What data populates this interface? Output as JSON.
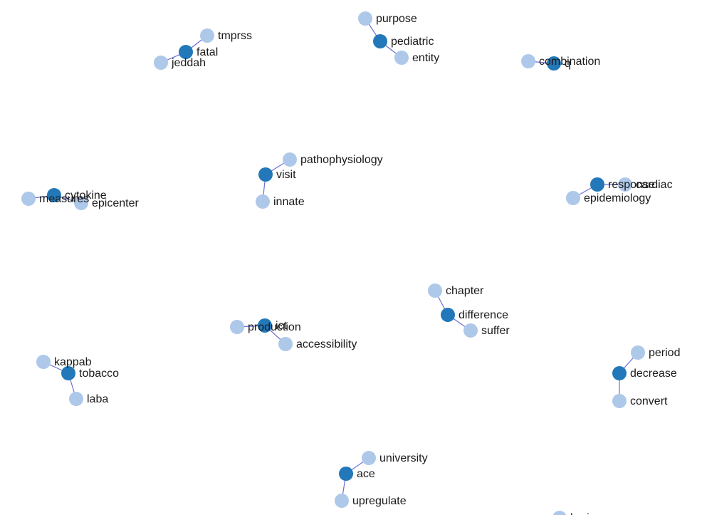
{
  "colors": {
    "hub_node": "#2278b8",
    "leaf_node": "#aec8e9",
    "edge": "#6b6fd4",
    "label": "#1a1a1a"
  },
  "clusters": [
    {
      "hub": {
        "label": "fatal"
      },
      "leaves": [
        {
          "label": "tmprss"
        },
        {
          "label": "jeddah"
        }
      ]
    },
    {
      "hub": {
        "label": "pediatric"
      },
      "leaves": [
        {
          "label": "purpose"
        },
        {
          "label": "entity"
        }
      ]
    },
    {
      "hub": {
        "label": "q"
      },
      "leaves": [
        {
          "label": "combination"
        }
      ]
    },
    {
      "hub": {
        "label": "cytokine"
      },
      "leaves": [
        {
          "label": "measures"
        },
        {
          "label": "epicenter"
        }
      ]
    },
    {
      "hub": {
        "label": "visit"
      },
      "leaves": [
        {
          "label": "pathophysiology"
        },
        {
          "label": "innate"
        }
      ]
    },
    {
      "hub": {
        "label": "response"
      },
      "leaves": [
        {
          "label": "cardiac"
        },
        {
          "label": "epidemiology"
        }
      ]
    },
    {
      "hub": {
        "label": "ict"
      },
      "leaves": [
        {
          "label": "production"
        },
        {
          "label": "accessibility"
        }
      ]
    },
    {
      "hub": {
        "label": "difference"
      },
      "leaves": [
        {
          "label": "chapter"
        },
        {
          "label": "suffer"
        }
      ]
    },
    {
      "hub": {
        "label": "tobacco"
      },
      "leaves": [
        {
          "label": "kappab"
        },
        {
          "label": "laba"
        }
      ]
    },
    {
      "hub": {
        "label": "decrease"
      },
      "leaves": [
        {
          "label": "period"
        },
        {
          "label": "convert"
        }
      ]
    },
    {
      "hub": {
        "label": "ace"
      },
      "leaves": [
        {
          "label": "university"
        },
        {
          "label": "upregulate"
        }
      ]
    }
  ],
  "partial_nodes": [
    {
      "label": "brain"
    }
  ]
}
